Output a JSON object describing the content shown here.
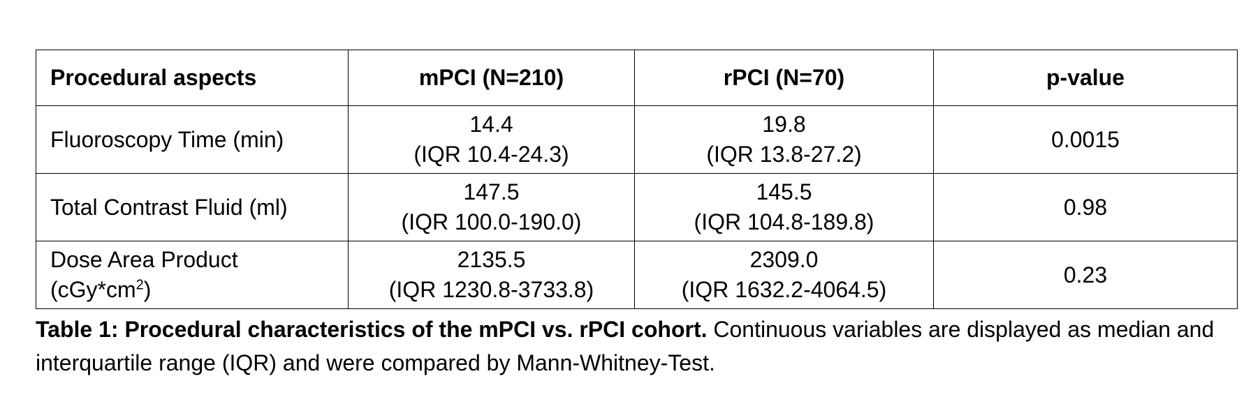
{
  "table": {
    "headers": [
      "Procedural aspects",
      "mPCI (N=210)",
      "rPCI (N=70)",
      "p-value"
    ],
    "rows": [
      {
        "label": "Fluoroscopy Time (min)",
        "mpci_median": "14.4",
        "mpci_iqr": "(IQR 10.4-24.3)",
        "rpci_median": "19.8",
        "rpci_iqr": "(IQR 13.8-27.2)",
        "p_value": "0.0015"
      },
      {
        "label": "Total Contrast Fluid (ml)",
        "mpci_median": "147.5",
        "mpci_iqr": "(IQR 100.0-190.0)",
        "rpci_median": "145.5",
        "rpci_iqr": "(IQR 104.8-189.8)",
        "p_value": "0.98"
      },
      {
        "label_line1": "Dose Area Product",
        "label_line2_base": "(cGy*cm",
        "label_line2_sup": "2",
        "label_line2_end": ")",
        "mpci_median": "2135.5",
        "mpci_iqr": "(IQR 1230.8-3733.8)",
        "rpci_median": "2309.0",
        "rpci_iqr": "(IQR 1632.2-4064.5)",
        "p_value": "0.23"
      }
    ]
  },
  "caption": {
    "bold": "Table 1: Procedural characteristics of the mPCI vs. rPCI cohort.",
    "text": " Continuous variables are displayed as median and interquartile range (IQR) and were compared by Mann-Whitney-Test."
  }
}
